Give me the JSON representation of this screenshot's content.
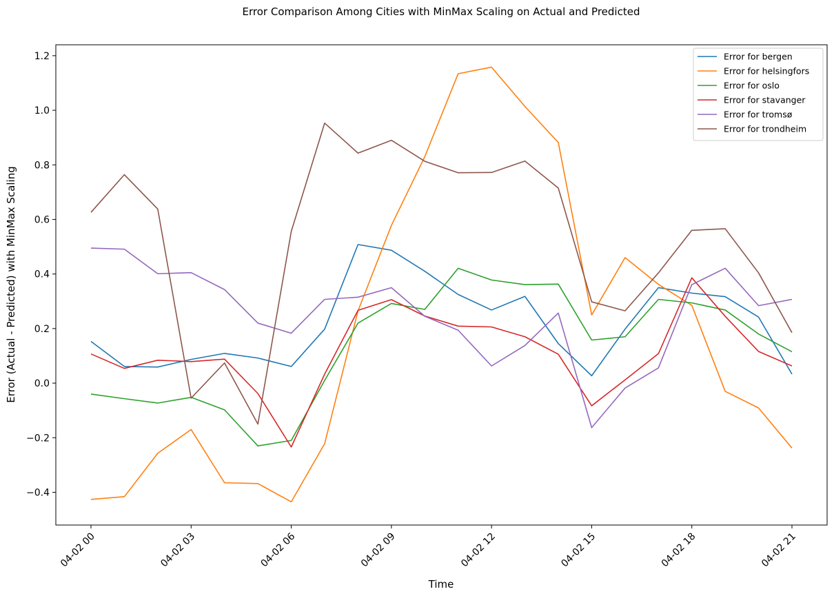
{
  "chart_data": {
    "type": "line",
    "title": "Error Comparison Among Cities with MinMax Scaling on Actual and Predicted",
    "xlabel": "Time",
    "ylabel": "Error (Actual - Predicted) with MinMax Scaling",
    "x": [
      "04-02 00",
      "04-02 01",
      "04-02 02",
      "04-02 03",
      "04-02 04",
      "04-02 05",
      "04-02 06",
      "04-02 07",
      "04-02 08",
      "04-02 09",
      "04-02 10",
      "04-02 11",
      "04-02 12",
      "04-02 13",
      "04-02 14",
      "04-02 15",
      "04-02 16",
      "04-02 17",
      "04-02 18",
      "04-02 19",
      "04-02 20",
      "04-02 21"
    ],
    "x_ticks": [
      "04-02 00",
      "04-02 03",
      "04-02 06",
      "04-02 09",
      "04-02 12",
      "04-02 15",
      "04-02 18",
      "04-02 21"
    ],
    "ylim": [
      -0.52,
      1.24
    ],
    "y_ticks": [
      -0.4,
      -0.2,
      0.0,
      0.2,
      0.4,
      0.6,
      0.8,
      1.0,
      1.2
    ],
    "y_tick_labels": [
      "−0.4",
      "−0.2",
      "0.0",
      "0.2",
      "0.4",
      "0.6",
      "0.8",
      "1.0",
      "1.2"
    ],
    "legend_position": "top-right",
    "grid": false,
    "series": [
      {
        "name": "Error for bergen",
        "color": "#1f77b4",
        "values": [
          0.153,
          0.061,
          0.059,
          0.087,
          0.109,
          0.092,
          0.061,
          0.198,
          0.508,
          0.487,
          0.41,
          0.325,
          0.268,
          0.318,
          0.145,
          0.027,
          0.198,
          0.35,
          0.33,
          0.317,
          0.242,
          0.033
        ]
      },
      {
        "name": "Error for helsingfors",
        "color": "#ff7f0e",
        "values": [
          -0.426,
          -0.416,
          -0.257,
          -0.17,
          -0.365,
          -0.368,
          -0.435,
          -0.222,
          0.265,
          0.578,
          0.83,
          1.134,
          1.158,
          1.014,
          0.882,
          0.25,
          0.46,
          0.362,
          0.285,
          -0.03,
          -0.091,
          -0.238
        ]
      },
      {
        "name": "Error for oslo",
        "color": "#2ca02c",
        "values": [
          -0.04,
          -0.057,
          -0.073,
          -0.052,
          -0.098,
          -0.23,
          -0.21,
          0.01,
          0.22,
          0.292,
          0.27,
          0.421,
          0.378,
          0.361,
          0.363,
          0.158,
          0.17,
          0.307,
          0.294,
          0.268,
          0.18,
          0.115
        ]
      },
      {
        "name": "Error for stavanger",
        "color": "#d62728",
        "values": [
          0.107,
          0.054,
          0.084,
          0.079,
          0.088,
          -0.038,
          -0.234,
          0.033,
          0.267,
          0.306,
          0.246,
          0.209,
          0.206,
          0.17,
          0.106,
          -0.083,
          0.012,
          0.108,
          0.386,
          0.245,
          0.116,
          0.063
        ]
      },
      {
        "name": "Error for tromsø",
        "color": "#9467bd",
        "values": [
          0.495,
          0.491,
          0.401,
          0.405,
          0.343,
          0.22,
          0.183,
          0.307,
          0.315,
          0.35,
          0.245,
          0.194,
          0.063,
          0.138,
          0.257,
          -0.163,
          -0.018,
          0.056,
          0.361,
          0.421,
          0.284,
          0.307
        ]
      },
      {
        "name": "Error for trondheim",
        "color": "#8c564b",
        "values": [
          0.626,
          0.764,
          0.638,
          -0.055,
          0.074,
          -0.15,
          0.556,
          0.953,
          0.843,
          0.89,
          0.813,
          0.771,
          0.772,
          0.814,
          0.715,
          0.298,
          0.265,
          0.404,
          0.56,
          0.566,
          0.404,
          0.185
        ]
      }
    ]
  }
}
